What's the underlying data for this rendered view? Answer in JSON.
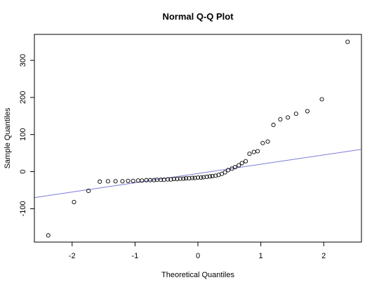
{
  "chart_data": {
    "type": "scatter",
    "title": "Normal Q-Q Plot",
    "xlabel": "Theoretical Quantiles",
    "ylabel": "Sample Quantiles",
    "xlim": [
      -2.6,
      2.6
    ],
    "ylim": [
      -190,
      370
    ],
    "xticks": [
      -2,
      -1,
      0,
      1,
      2
    ],
    "yticks": [
      -100,
      0,
      100,
      200,
      300
    ],
    "grid": false,
    "point_style": "open-circle",
    "reference_line": {
      "intercept": -5,
      "slope": 25,
      "color": "#7b7bd6"
    },
    "x": [
      -2.38,
      -1.97,
      -1.74,
      -1.56,
      -1.43,
      -1.31,
      -1.2,
      -1.11,
      -1.03,
      -0.95,
      -0.89,
      -0.82,
      -0.76,
      -0.7,
      -0.65,
      -0.59,
      -0.54,
      -0.48,
      -0.43,
      -0.38,
      -0.33,
      -0.28,
      -0.23,
      -0.19,
      -0.14,
      -0.09,
      -0.05,
      0.0,
      0.05,
      0.09,
      0.14,
      0.19,
      0.23,
      0.28,
      0.33,
      0.38,
      0.43,
      0.48,
      0.54,
      0.59,
      0.65,
      0.7,
      0.76,
      0.82,
      0.89,
      0.95,
      1.03,
      1.11,
      1.2,
      1.31,
      1.43,
      1.56,
      1.74,
      1.97,
      2.38
    ],
    "y": [
      -172,
      -82,
      -52,
      -27,
      -26,
      -26,
      -26,
      -25,
      -25,
      -24,
      -24,
      -23,
      -23,
      -23,
      -22,
      -22,
      -22,
      -21,
      -21,
      -20,
      -20,
      -19,
      -19,
      -18,
      -18,
      -17,
      -17,
      -16,
      -16,
      -15,
      -14,
      -13,
      -12,
      -11,
      -9,
      -6,
      -2,
      4,
      8,
      12,
      17,
      23,
      28,
      48,
      53,
      55,
      77,
      81,
      126,
      141,
      146,
      156,
      163,
      195,
      350
    ]
  }
}
